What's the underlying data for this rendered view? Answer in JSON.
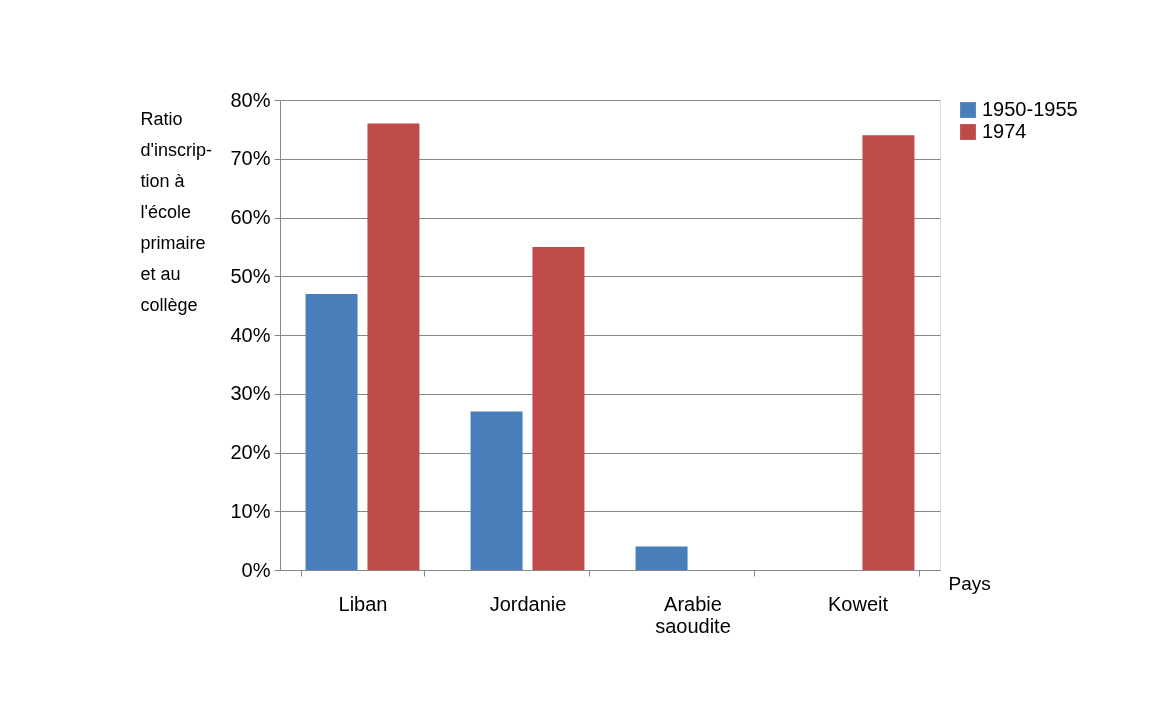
{
  "chart_data": {
    "type": "bar",
    "xlabel": "Pays",
    "ylabel": "Ratio\nd'inscrip-\ntion  à\nl'école\nprimaire\net au\ncollège",
    "categories": [
      "Liban",
      "Jordanie",
      "Arabie saoudite",
      "Koweit"
    ],
    "series": [
      {
        "name": "1950-1955",
        "color": "#4a7ebb",
        "values": [
          47,
          27,
          4,
          null
        ]
      },
      {
        "name": "1974",
        "color": "#be4b48",
        "values": [
          76,
          55,
          null,
          74
        ]
      }
    ],
    "ylim": [
      0,
      80
    ],
    "yticks": [
      {
        "value": 0,
        "label": "0%"
      },
      {
        "value": 10,
        "label": "10%"
      },
      {
        "value": 20,
        "label": "20%"
      },
      {
        "value": 30,
        "label": "30%"
      },
      {
        "value": 40,
        "label": "40%"
      },
      {
        "value": 50,
        "label": "50%"
      },
      {
        "value": 60,
        "label": "60%"
      },
      {
        "value": 70,
        "label": "70%"
      },
      {
        "value": 80,
        "label": "80%"
      }
    ],
    "grid": "y",
    "legend": "right"
  }
}
